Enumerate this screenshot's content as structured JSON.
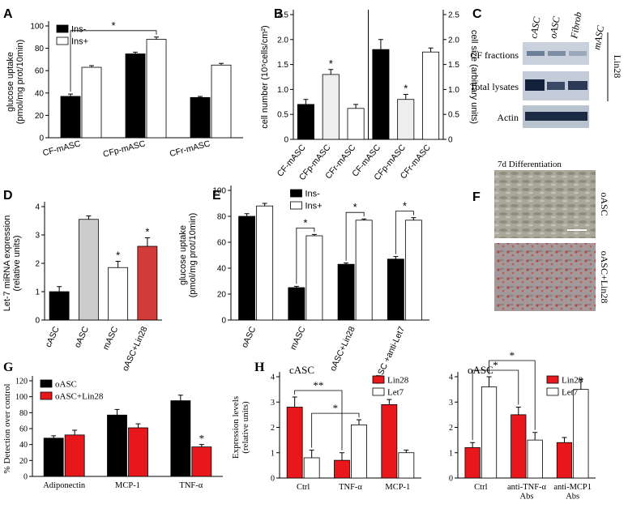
{
  "chart_data": [
    {
      "type": "bar",
      "panel": "A",
      "ylabel": [
        "glucose uptake",
        "(pmol/mg prot/10min)"
      ],
      "categories": [
        "CF-mASC",
        "CFp-mASC",
        "CFr-mASC"
      ],
      "series": [
        {
          "name": "Ins-",
          "color": "#000000",
          "values": [
            37,
            75,
            36
          ],
          "errors": [
            2,
            1.5,
            1
          ]
        },
        {
          "name": "Ins+",
          "color": "#ffffff",
          "values": [
            63,
            88,
            65
          ],
          "errors": [
            1.5,
            2,
            1.5
          ]
        }
      ],
      "ylim": [
        0,
        100
      ],
      "yticks": [
        0,
        20,
        40,
        60,
        80,
        100
      ],
      "legend": "upper left",
      "annotations": [
        {
          "text": "*",
          "from": [
            0,
            0
          ],
          "to": [
            1,
            1
          ]
        }
      ]
    },
    {
      "type": "bar",
      "panel": "B",
      "ylabel": [
        "cell number (10⁵cells/cm²)"
      ],
      "y2label": [
        "cell size (arbitrary units)"
      ],
      "categories": [
        "CF-mASC",
        "CFp-mASC",
        "CFr-mASC",
        "CF-mASC",
        "CFp-mASC",
        "CFr-mASC"
      ],
      "colors": [
        "#000000",
        "#eeeeee",
        "#ffffff",
        "#000000",
        "#eeeeee",
        "#ffffff"
      ],
      "series": [
        {
          "values": [
            0.7,
            1.3,
            0.62,
            null,
            null,
            null
          ],
          "errors": [
            0.1,
            0.1,
            0.08,
            null,
            null,
            null
          ]
        },
        {
          "axis": "y2",
          "values": [
            null,
            null,
            null,
            1.8,
            0.8,
            1.75
          ],
          "errors": [
            null,
            null,
            null,
            0.2,
            0.1,
            0.08
          ]
        }
      ],
      "ylim": [
        0,
        2.5
      ],
      "yticks": [
        0,
        0.5,
        {
          "value": 1,
          "label": "1.0"
        },
        1.5,
        {
          "value": 2,
          "label": "2.0"
        },
        2.5
      ],
      "y2lim": [
        0,
        2.5
      ],
      "y2ticks": [
        0,
        0.5,
        {
          "value": 1,
          "label": "1.0"
        },
        1.5,
        {
          "value": 2,
          "label": "2.0"
        },
        2.5
      ],
      "annotations": [
        {
          "text": "*",
          "at": [
            1,
            0
          ]
        },
        {
          "text": "*",
          "at": [
            4,
            1
          ]
        }
      ]
    },
    {
      "type": "bar",
      "panel": "D",
      "ylabel": [
        "Let-7 miRNA expression",
        "(relative units)"
      ],
      "categories": [
        "cASC",
        "oASC",
        "mASC",
        "oASC+Lin28"
      ],
      "values": [
        1.0,
        3.55,
        1.85,
        2.6
      ],
      "errors": [
        0.18,
        0.12,
        0.22,
        0.3
      ],
      "colors": [
        "#000000",
        "#cccccc",
        "#ffffff",
        "#d33a3a"
      ],
      "ylim": [
        0,
        4
      ],
      "yticks": [
        0,
        1,
        2,
        3,
        4
      ],
      "annotations": [
        {
          "text": "*",
          "at": [
            2,
            0
          ]
        },
        {
          "text": "*",
          "at": [
            3,
            0
          ]
        }
      ]
    },
    {
      "type": "bar",
      "panel": "E",
      "ylabel": [
        "glucose uptake",
        "(pmol/mg prot/10min)"
      ],
      "categories": [
        "oASC",
        "mASC",
        "oASC+Lin28",
        "cASC +anti-Let7"
      ],
      "series": [
        {
          "name": "Ins-",
          "color": "#000000",
          "values": [
            80,
            25,
            43,
            47
          ],
          "errors": [
            2,
            1,
            1,
            2
          ]
        },
        {
          "name": "Ins+",
          "color": "#ffffff",
          "values": [
            88,
            65,
            77,
            77
          ],
          "errors": [
            2,
            1,
            1,
            2
          ]
        }
      ],
      "ylim": [
        0,
        100
      ],
      "yticks": [
        0,
        20,
        40,
        60,
        80,
        100
      ],
      "legend": "upper center",
      "annotations": [
        {
          "text": "*",
          "from": [
            1,
            0
          ],
          "to": [
            1,
            1
          ]
        },
        {
          "text": "*",
          "from": [
            2,
            0
          ],
          "to": [
            2,
            1
          ]
        },
        {
          "text": "*",
          "from": [
            3,
            0
          ],
          "to": [
            3,
            1
          ]
        }
      ]
    },
    {
      "type": "bar",
      "panel": "G",
      "ylabel": [
        "% Detection over control"
      ],
      "categories": [
        "Adiponectin",
        "MCP-1",
        "TNF-α"
      ],
      "series": [
        {
          "name": "oASC",
          "color": "#000000",
          "values": [
            48,
            77,
            95
          ],
          "errors": [
            3,
            7,
            7
          ]
        },
        {
          "name": "oASC+Lin28",
          "color": "#e8171b",
          "values": [
            52,
            61,
            37
          ],
          "errors": [
            6,
            5,
            3
          ]
        }
      ],
      "ylim": [
        0,
        120
      ],
      "yticks": [
        0,
        20,
        40,
        60,
        80,
        100,
        120
      ],
      "legend": "upper left",
      "annotations": [
        {
          "text": "*",
          "at": [
            2,
            1
          ]
        }
      ]
    },
    {
      "type": "bar",
      "panel": "H",
      "label": "cASC",
      "ylabel": [
        "Expression levels",
        "(relative units)"
      ],
      "categories": [
        "Ctrl",
        "TNF-α",
        "MCP-1"
      ],
      "series": [
        {
          "name": "Lin28",
          "color": "#e8171b",
          "values": [
            2.8,
            0.7,
            2.9
          ],
          "errors": [
            0.4,
            0.3,
            0.2
          ]
        },
        {
          "name": "Let7",
          "color": "#ffffff",
          "values": [
            0.8,
            2.1,
            1.0
          ],
          "errors": [
            0.3,
            0.2,
            0.1
          ]
        }
      ],
      "ylim": [
        0,
        4
      ],
      "yticks": [
        0,
        1,
        2,
        3,
        4
      ],
      "legend": "upper right",
      "annotations": [
        {
          "text": "**",
          "from": [
            0,
            0
          ],
          "to": [
            1,
            0
          ]
        },
        {
          "text": "*",
          "from": [
            0,
            1
          ],
          "to": [
            1,
            1
          ]
        }
      ]
    },
    {
      "type": "bar",
      "label": "oASC",
      "categories": [
        "Ctrl",
        "anti-TNF-α\nAbs",
        "anti-MCP1\nAbs"
      ],
      "series": [
        {
          "name": "Lin28",
          "color": "#e8171b",
          "values": [
            1.2,
            2.5,
            1.4
          ],
          "errors": [
            0.2,
            0.3,
            0.2
          ]
        },
        {
          "name": "Let7",
          "color": "#ffffff",
          "values": [
            3.6,
            1.5,
            3.5
          ],
          "errors": [
            0.4,
            0.3,
            0.4
          ]
        }
      ],
      "ylim": [
        0,
        4
      ],
      "yticks": [
        0,
        1,
        2,
        3,
        4
      ],
      "legend": "upper right",
      "annotations": [
        {
          "text": "*",
          "from": [
            0,
            0
          ],
          "to": [
            1,
            0
          ]
        },
        {
          "text": "*",
          "from": [
            0,
            1
          ],
          "to": [
            1,
            1
          ]
        }
      ]
    }
  ],
  "blot": {
    "panel": "C",
    "columns": [
      "cASC",
      "oASC",
      "Fibrob",
      "mASC"
    ],
    "rows": [
      "CF fractions",
      "Total lysates",
      "Actin"
    ],
    "side_label": "Lin28"
  },
  "micrograph": {
    "panel": "F",
    "title": "7d Differentiation",
    "images": [
      "oASC",
      "oASC+Lin28"
    ]
  }
}
